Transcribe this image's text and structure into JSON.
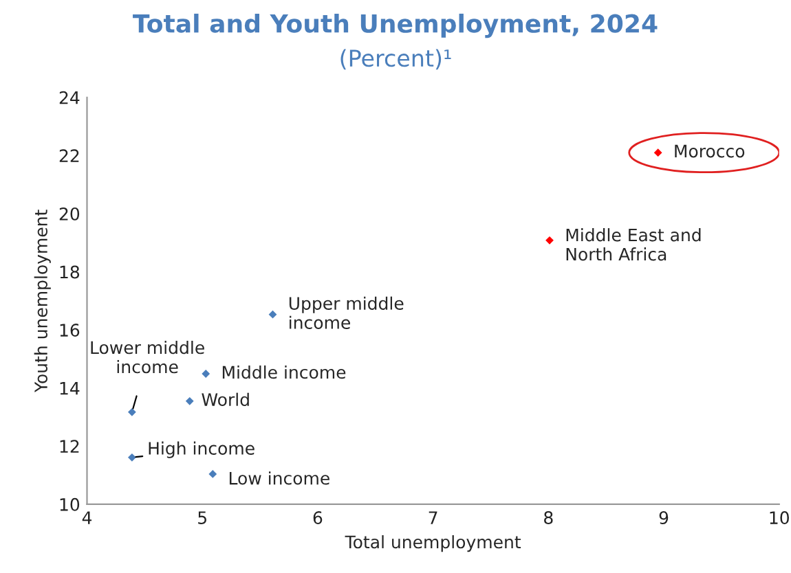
{
  "chart_data": {
    "type": "scatter",
    "title": "Total and Youth Unemployment, 2024",
    "subtitle": "(Percent)¹",
    "xlabel": "Total unemployment",
    "ylabel": "Youth unemployment",
    "x": [
      8.95,
      8.01,
      5.61,
      5.03,
      4.89,
      4.39,
      4.39,
      5.09
    ],
    "values": [
      22.1,
      19.08,
      16.53,
      14.49,
      13.55,
      13.17,
      11.61,
      11.04
    ],
    "colors": [
      "#ff0000",
      "#ff0000",
      "#4a7ebb",
      "#4a7ebb",
      "#4a7ebb",
      "#4a7ebb",
      "#4a7ebb",
      "#4a7ebb"
    ],
    "marker": "diamond",
    "grid": false,
    "legend": false,
    "xlim": [
      4,
      10
    ],
    "xticks": [
      4,
      5,
      6,
      7,
      8,
      9,
      10
    ],
    "ylim": [
      10,
      24
    ],
    "yticks": [
      10,
      12,
      14,
      16,
      18,
      20,
      22,
      24
    ],
    "annotations": [
      {
        "text": "Morocco",
        "x": 8.95,
        "y": 22.1
      },
      {
        "text": "Middle East and\nNorth Africa",
        "x": 8.01,
        "y": 19.08
      },
      {
        "text": "Upper middle\nincome",
        "x": 5.61,
        "y": 16.53
      },
      {
        "text": "Middle income",
        "x": 5.03,
        "y": 14.49
      },
      {
        "text": "World",
        "x": 4.89,
        "y": 13.55
      },
      {
        "text": "Lower middle\nincome",
        "x": 4.39,
        "y": 13.17
      },
      {
        "text": "High income",
        "x": 4.39,
        "y": 11.61
      },
      {
        "text": "Low income",
        "x": 5.09,
        "y": 11.04
      }
    ]
  }
}
